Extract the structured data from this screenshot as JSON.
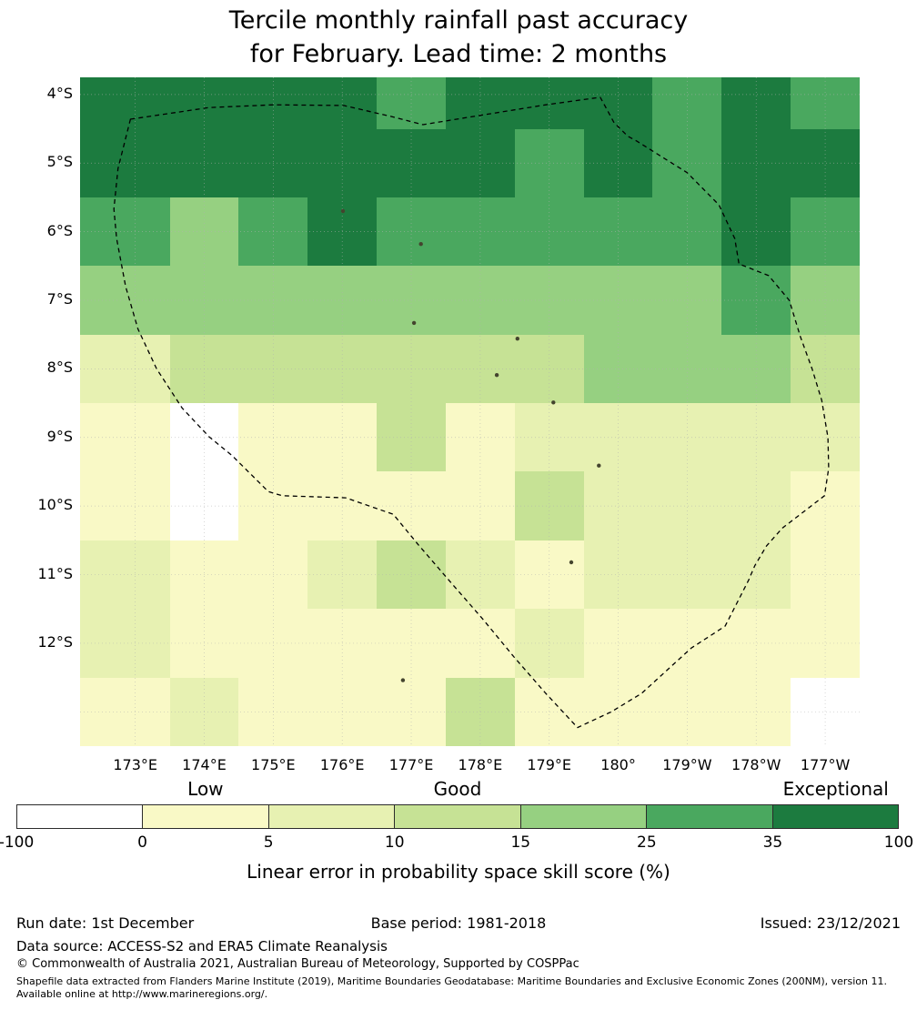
{
  "title": {
    "line1": "Tercile monthly rainfall past accuracy",
    "line2": "for February. Lead time: 2 months"
  },
  "chart_data": {
    "type": "heatmap",
    "title": "Tercile monthly rainfall past accuracy for February. Lead time: 2 months",
    "colorbar_label": "Linear error in probability space skill score (%)",
    "lon_range": [
      172.2,
      183.5
    ],
    "lat_range": [
      3.75,
      13.5
    ],
    "lon_edges": [
      172.2,
      173.5,
      174.5,
      175.5,
      176.5,
      177.5,
      178.5,
      179.5,
      180.5,
      181.5,
      182.5,
      183.5
    ],
    "lat_edges": [
      3.75,
      4.5,
      5.5,
      6.5,
      7.5,
      8.5,
      9.5,
      10.5,
      11.5,
      12.5,
      13.5
    ],
    "lon_ticks": [
      {
        "value": 173,
        "label": "173°E"
      },
      {
        "value": 174,
        "label": "174°E"
      },
      {
        "value": 175,
        "label": "175°E"
      },
      {
        "value": 176,
        "label": "176°E"
      },
      {
        "value": 177,
        "label": "177°E"
      },
      {
        "value": 178,
        "label": "178°E"
      },
      {
        "value": 179,
        "label": "179°E"
      },
      {
        "value": 180,
        "label": "180°"
      },
      {
        "value": 181,
        "label": "179°W"
      },
      {
        "value": 182,
        "label": "178°W"
      },
      {
        "value": 183,
        "label": "177°W"
      }
    ],
    "lat_ticks": [
      {
        "value": 4,
        "label": "4°S"
      },
      {
        "value": 5,
        "label": "5°S"
      },
      {
        "value": 6,
        "label": "6°S"
      },
      {
        "value": 7,
        "label": "7°S"
      },
      {
        "value": 8,
        "label": "8°S"
      },
      {
        "value": 9,
        "label": "9°S"
      },
      {
        "value": 10,
        "label": "10°S"
      },
      {
        "value": 11,
        "label": "11°S"
      },
      {
        "value": 12,
        "label": "12°S"
      }
    ],
    "bins": [
      {
        "range": "-100 to 0",
        "color": "#ffffff"
      },
      {
        "range": "0 to 5",
        "color": "#f9f9c6"
      },
      {
        "range": "5 to 10",
        "color": "#e7f1b2"
      },
      {
        "range": "10 to 15",
        "color": "#c6e295"
      },
      {
        "range": "15 to 25",
        "color": "#96d081"
      },
      {
        "range": "25 to 35",
        "color": "#4aa85f"
      },
      {
        "range": "35 to 100",
        "color": "#1c7b3f"
      }
    ],
    "colorbar_ticks": [
      "-100",
      "0",
      "5",
      "10",
      "15",
      "25",
      "35",
      "100"
    ],
    "band_labels": [
      {
        "label": "Low",
        "over_bin": 1
      },
      {
        "label": "Good",
        "over_bin": 3
      },
      {
        "label": "Exceptional",
        "over_bin": 6
      }
    ],
    "grid": [
      [
        6,
        6,
        6,
        6,
        5,
        6,
        6,
        6,
        5,
        6,
        5
      ],
      [
        6,
        6,
        6,
        6,
        6,
        6,
        5,
        6,
        5,
        6,
        6
      ],
      [
        5,
        4,
        5,
        6,
        5,
        5,
        5,
        5,
        5,
        6,
        5
      ],
      [
        4,
        4,
        4,
        4,
        4,
        4,
        4,
        4,
        4,
        5,
        4
      ],
      [
        2,
        3,
        3,
        3,
        3,
        3,
        3,
        4,
        4,
        4,
        3
      ],
      [
        1,
        0,
        1,
        1,
        3,
        1,
        2,
        2,
        2,
        2,
        2
      ],
      [
        1,
        0,
        1,
        1,
        1,
        1,
        3,
        2,
        2,
        2,
        1
      ],
      [
        2,
        1,
        1,
        2,
        3,
        2,
        1,
        2,
        2,
        2,
        1
      ],
      [
        2,
        1,
        1,
        1,
        1,
        1,
        2,
        1,
        1,
        1,
        1
      ],
      [
        1,
        2,
        1,
        1,
        1,
        3,
        1,
        1,
        1,
        1,
        0
      ]
    ],
    "eez_boundary": [
      [
        172.93,
        4.36
      ],
      [
        174.07,
        4.19
      ],
      [
        175.0,
        4.15
      ],
      [
        176.02,
        4.16
      ],
      [
        176.71,
        4.32
      ],
      [
        177.17,
        4.44
      ],
      [
        177.9,
        4.32
      ],
      [
        178.95,
        4.15
      ],
      [
        179.74,
        4.04
      ],
      [
        179.94,
        4.41
      ],
      [
        180.14,
        4.61
      ],
      [
        180.27,
        4.68
      ],
      [
        181.0,
        5.14
      ],
      [
        181.46,
        5.61
      ],
      [
        181.69,
        6.1
      ],
      [
        181.75,
        6.47
      ],
      [
        182.18,
        6.64
      ],
      [
        182.48,
        7.0
      ],
      [
        182.64,
        7.53
      ],
      [
        182.81,
        8.0
      ],
      [
        182.95,
        8.46
      ],
      [
        183.04,
        9.0
      ],
      [
        183.05,
        9.45
      ],
      [
        182.99,
        9.85
      ],
      [
        182.64,
        10.12
      ],
      [
        182.38,
        10.32
      ],
      [
        182.15,
        10.58
      ],
      [
        181.98,
        10.87
      ],
      [
        181.89,
        11.08
      ],
      [
        181.55,
        11.75
      ],
      [
        181.06,
        12.07
      ],
      [
        180.34,
        12.73
      ],
      [
        179.9,
        13.0
      ],
      [
        179.41,
        13.23
      ],
      [
        178.95,
        12.73
      ],
      [
        178.49,
        12.2
      ],
      [
        178.03,
        11.64
      ],
      [
        177.57,
        11.11
      ],
      [
        177.1,
        10.56
      ],
      [
        176.74,
        10.12
      ],
      [
        176.05,
        9.88
      ],
      [
        175.13,
        9.85
      ],
      [
        174.93,
        9.79
      ],
      [
        174.4,
        9.26
      ],
      [
        174.07,
        8.99
      ],
      [
        173.68,
        8.57
      ],
      [
        173.31,
        8.0
      ],
      [
        173.04,
        7.42
      ],
      [
        172.86,
        6.8
      ],
      [
        172.73,
        6.1
      ],
      [
        172.69,
        5.67
      ],
      [
        172.75,
        5.08
      ]
    ],
    "islands": [
      [
        176.01,
        5.7
      ],
      [
        177.14,
        6.18
      ],
      [
        177.04,
        7.33
      ],
      [
        178.54,
        7.56
      ],
      [
        178.24,
        8.09
      ],
      [
        179.06,
        8.49
      ],
      [
        179.72,
        9.41
      ],
      [
        179.32,
        10.82
      ],
      [
        176.88,
        12.54
      ]
    ]
  },
  "footer": {
    "run_date": "Run date: 1st December",
    "base_period": "Base period: 1981-2018",
    "issued": "Issued: 23/12/2021",
    "data_source": "Data source: ACCESS-S2 and ERA5 Climate Reanalysis",
    "copyright": "© Commonwealth of Australia 2021, Australian Bureau of Meteorology, Supported by COSPPac",
    "shapefile_note": "Shapefile data extracted from Flanders Marine Institute (2019), Maritime Boundaries Geodatabase: Maritime Boundaries and Exclusive Economic Zones (200NM), version 11. Available online at http://www.marineregions.org/."
  }
}
